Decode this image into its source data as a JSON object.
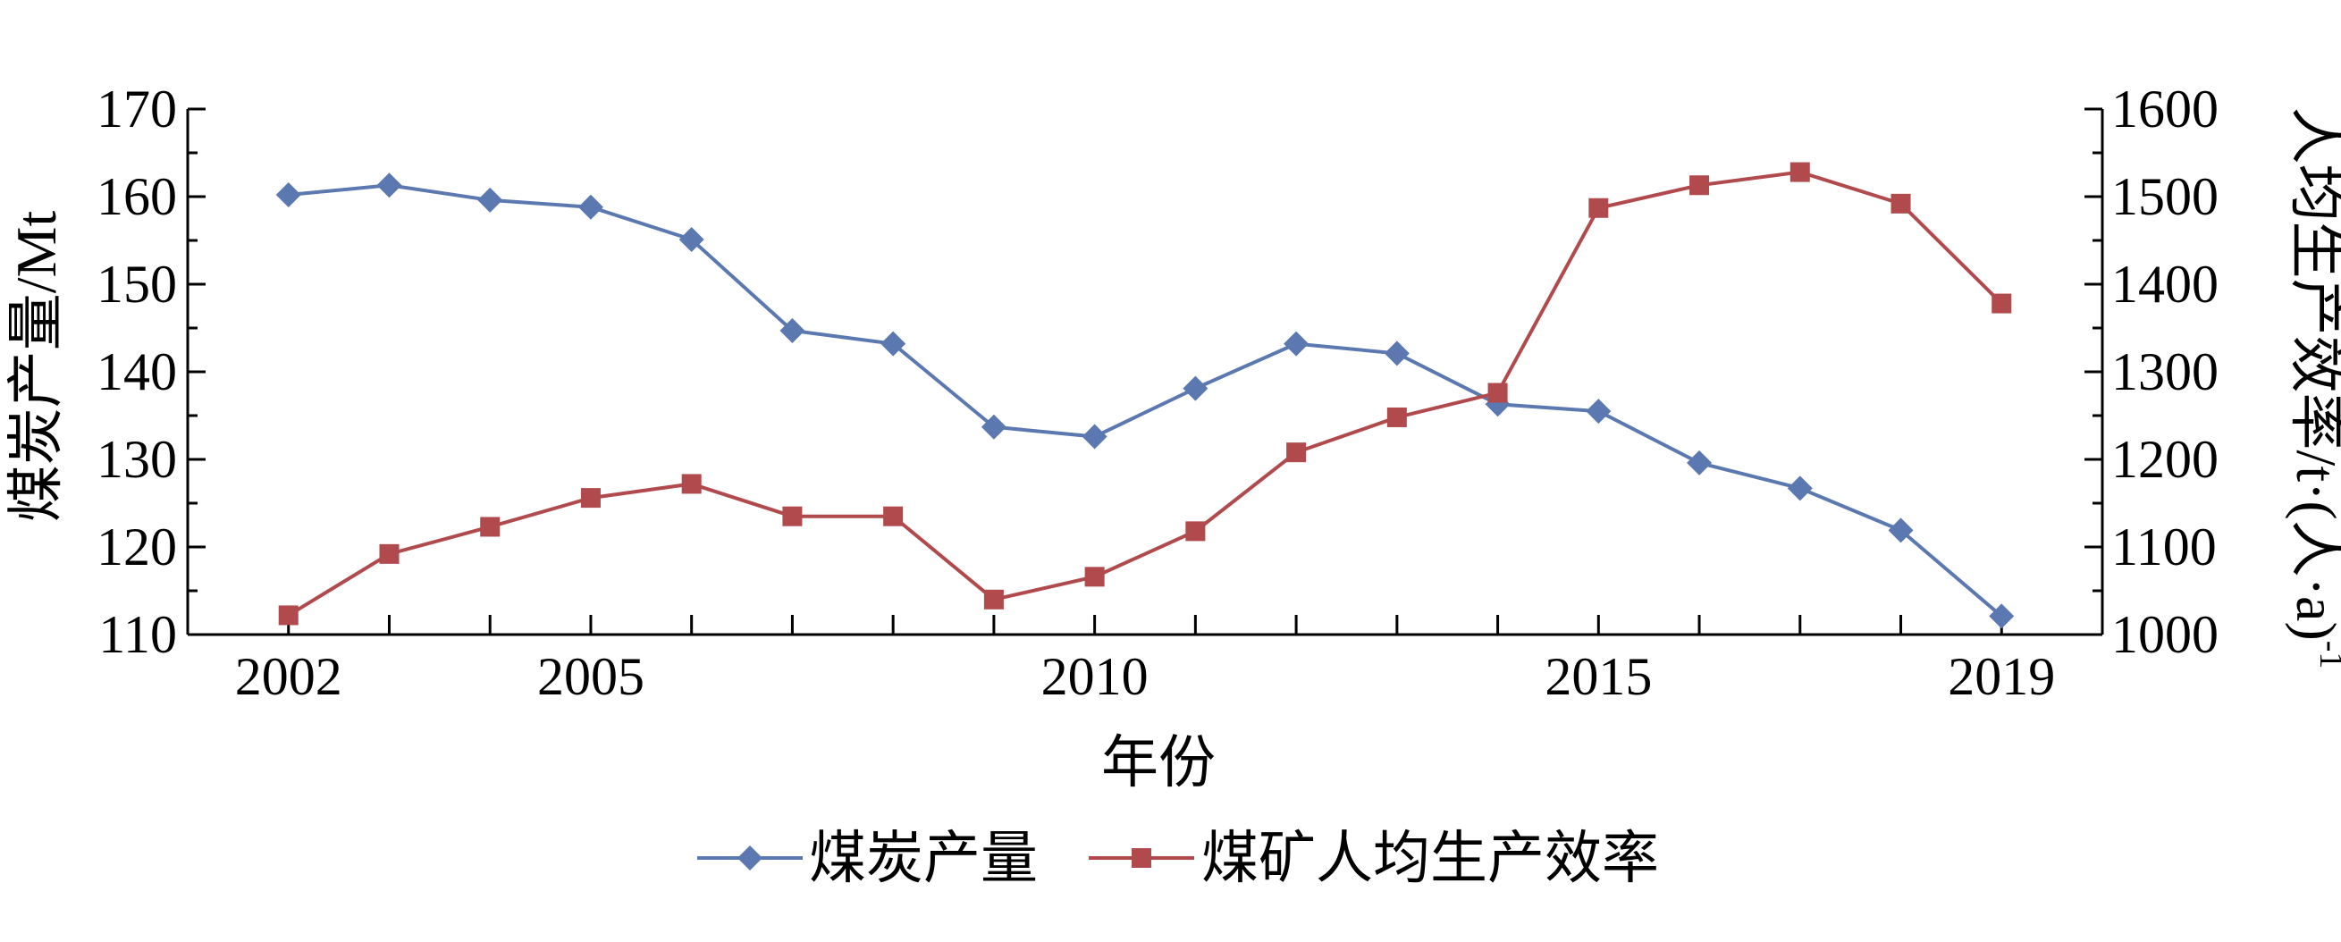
{
  "chart_data": {
    "type": "line",
    "xlabel": "年份",
    "ylabel_left": "煤炭产量/Mt",
    "ylabel_right": "人均生产效率/t·(人·a)",
    "ylabel_right_sup": "-1",
    "x": [
      2002,
      2003,
      2004,
      2005,
      2006,
      2007,
      2008,
      2009,
      2010,
      2011,
      2012,
      2013,
      2014,
      2015,
      2016,
      2017,
      2018,
      2019
    ],
    "x_tick_labels": [
      "2002",
      "2005",
      "2010",
      "2015",
      "2019"
    ],
    "ylim_left": [
      110,
      170
    ],
    "yticks_left": [
      "110",
      "120",
      "130",
      "140",
      "150",
      "160",
      "170"
    ],
    "ylim_right": [
      1000,
      1600
    ],
    "yticks_right": [
      "1000",
      "1100",
      "1200",
      "1300",
      "1400",
      "1500",
      "1600"
    ],
    "grid": false,
    "legend_position": "bottom",
    "series": [
      {
        "name": "煤炭产量",
        "axis": "left",
        "marker": "diamond",
        "color": "#5b78b1",
        "values": [
          160.2,
          161.3,
          159.6,
          158.8,
          155.1,
          144.7,
          143.2,
          133.7,
          132.6,
          138.1,
          143.2,
          142.1,
          136.3,
          135.5,
          129.6,
          126.7,
          121.9,
          112.1
        ]
      },
      {
        "name": "煤矿人均生产效率",
        "axis": "right",
        "marker": "square",
        "color": "#b04a4d",
        "values": [
          1022,
          1092,
          1123,
          1156,
          1172,
          1135,
          1135,
          1040,
          1066,
          1118,
          1208,
          1248,
          1276,
          1487,
          1513,
          1528,
          1492,
          1378
        ]
      }
    ]
  }
}
